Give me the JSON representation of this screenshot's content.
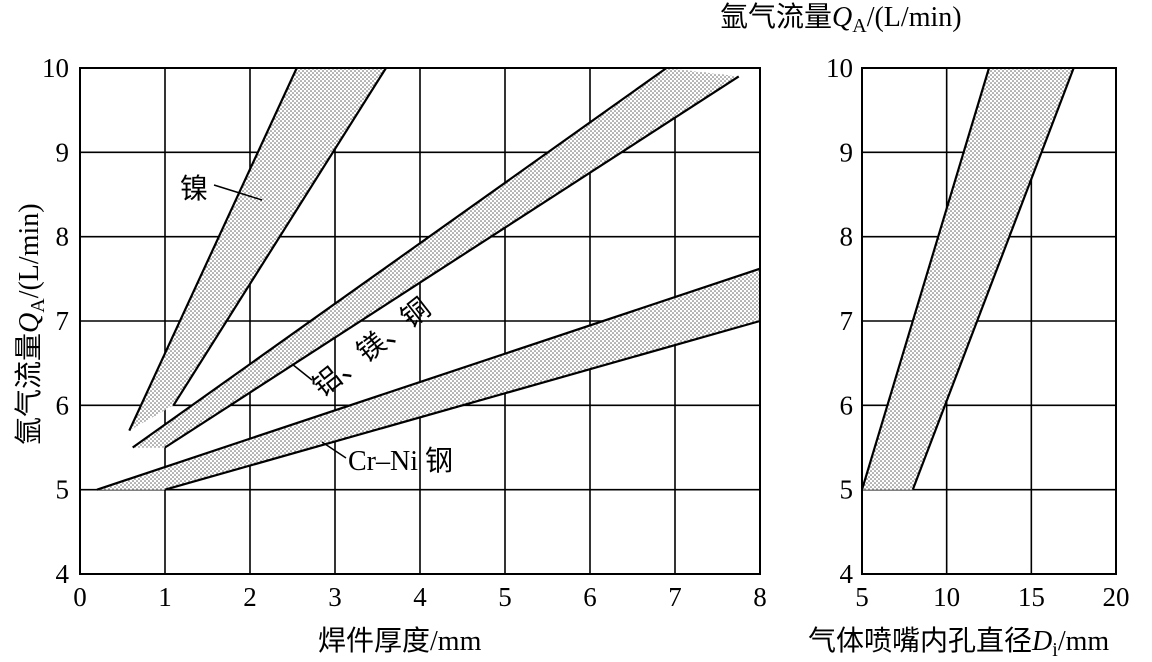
{
  "chart_data": [
    {
      "type": "area",
      "xlabel": "焊件厚度/mm",
      "ylabel": "氩气流量Q_A/(L/min)",
      "ylabel_parts": {
        "main": "氩气流量",
        "sym": "Q",
        "sub": "A",
        "unit": "/(L/min)"
      },
      "xlabel_parts": {
        "main": "焊件厚度",
        "unit": "/mm"
      },
      "xlim": [
        0,
        8
      ],
      "ylim": [
        4,
        10
      ],
      "xticks": [
        "0",
        "1",
        "2",
        "3",
        "4",
        "5",
        "6",
        "7",
        "8"
      ],
      "yticks": [
        "4",
        "5",
        "6",
        "7",
        "8",
        "9",
        "10"
      ],
      "grid": true,
      "bands": [
        {
          "name": "镍",
          "upper": [
            [
              0.58,
              5.7
            ],
            [
              2.55,
              10.0
            ]
          ],
          "lower": [
            [
              1.1,
              6.0
            ],
            [
              3.6,
              10.0
            ]
          ],
          "polygon": [
            [
              0.58,
              5.7
            ],
            [
              2.55,
              10.0
            ],
            [
              3.6,
              10.0
            ],
            [
              1.1,
              6.0
            ]
          ]
        },
        {
          "name": "铝、镁、铜",
          "upper": [
            [
              0.62,
              5.5
            ],
            [
              6.9,
              10.0
            ]
          ],
          "lower": [
            [
              1.0,
              5.5
            ],
            [
              7.75,
              9.9
            ]
          ],
          "polygon": [
            [
              0.62,
              5.5
            ],
            [
              6.9,
              10.0
            ],
            [
              7.75,
              9.9
            ],
            [
              1.0,
              5.5
            ]
          ]
        },
        {
          "name": "Cr–Ni 钢",
          "upper": [
            [
              0.2,
              5.0
            ],
            [
              8.0,
              7.62
            ]
          ],
          "lower": [
            [
              1.0,
              5.0
            ],
            [
              8.0,
              7.0
            ]
          ],
          "polygon": [
            [
              0.2,
              5.0
            ],
            [
              8.0,
              7.62
            ],
            [
              8.0,
              7.0
            ],
            [
              1.0,
              5.0
            ]
          ]
        }
      ],
      "annotations": [
        {
          "text": "镍",
          "x": 1.4,
          "y": 8.6
        },
        {
          "text": "铝、镁、铜",
          "x": 3.6,
          "y": 6.8
        },
        {
          "text": "Cr–Ni 钢",
          "x": 3.4,
          "y": 5.35
        }
      ]
    },
    {
      "type": "area",
      "title": "氩气流量Q_A/(L/min)",
      "title_parts": {
        "main": "氩气流量",
        "sym": "Q",
        "sub": "A",
        "unit": "/(L/min)"
      },
      "xlabel": "气体喷嘴内孔直径D_i/mm",
      "xlabel_parts": {
        "main": "气体喷嘴内孔直径",
        "sym": "D",
        "sub": "i",
        "unit": "/mm"
      },
      "xlim": [
        5,
        20
      ],
      "ylim": [
        4,
        10
      ],
      "xticks": [
        "5",
        "10",
        "15",
        "20"
      ],
      "yticks": [
        "4",
        "5",
        "6",
        "7",
        "8",
        "9",
        "10"
      ],
      "grid": true,
      "bands": [
        {
          "name": "",
          "upper": [
            [
              5.0,
              5.0
            ],
            [
              12.5,
              10.0
            ]
          ],
          "lower": [
            [
              8.0,
              5.0
            ],
            [
              17.5,
              10.0
            ]
          ],
          "polygon": [
            [
              5.0,
              5.0
            ],
            [
              12.5,
              10.0
            ],
            [
              17.5,
              10.0
            ],
            [
              8.0,
              5.0
            ]
          ]
        }
      ]
    }
  ]
}
